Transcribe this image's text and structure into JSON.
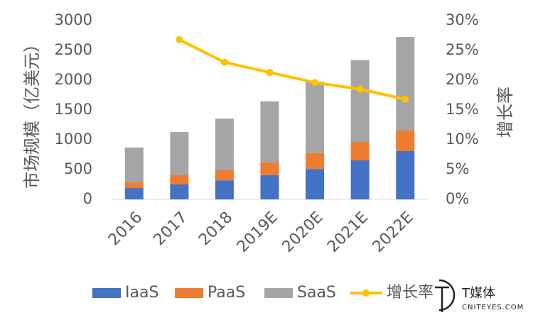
{
  "chart_data": {
    "type": "bar",
    "y_label": "市场规模（亿美元）",
    "y2_label": "增长率",
    "categories": [
      "2016",
      "2017",
      "2018",
      "2019E",
      "2020E",
      "2021E",
      "2022E"
    ],
    "stacked": true,
    "series": [
      {
        "name": "IaaS",
        "color": "#4472c4",
        "values": [
          190,
          250,
          320,
          405,
          510,
          655,
          810
        ]
      },
      {
        "name": "PaaS",
        "color": "#ed7d31",
        "values": [
          95,
          155,
          170,
          215,
          265,
          310,
          345
        ]
      },
      {
        "name": "SaaS",
        "color": "#a5a5a5",
        "values": [
          585,
          725,
          865,
          1025,
          1200,
          1370,
          1570
        ]
      },
      {
        "name": "增长率",
        "color": "#ffc000",
        "type": "line",
        "axis": "y2",
        "values": [
          null,
          26.8,
          23.0,
          21.3,
          19.6,
          18.5,
          16.8
        ]
      }
    ],
    "ylim": [
      0,
      3000
    ],
    "yticks": [
      0,
      500,
      1000,
      1500,
      2000,
      2500,
      3000
    ],
    "y2lim": [
      0,
      30
    ],
    "y2ticks": [
      {
        "value": 0,
        "label": "0%"
      },
      {
        "value": 5,
        "label": "5%"
      },
      {
        "value": 10,
        "label": "10%"
      },
      {
        "value": 15,
        "label": "15%"
      },
      {
        "value": 20,
        "label": "20%"
      },
      {
        "value": 25,
        "label": "25%"
      },
      {
        "value": 30,
        "label": "30%"
      }
    ],
    "legend": "bottom"
  },
  "watermark": {
    "brand": "T媒体",
    "site": "CNITEYES.COM"
  }
}
